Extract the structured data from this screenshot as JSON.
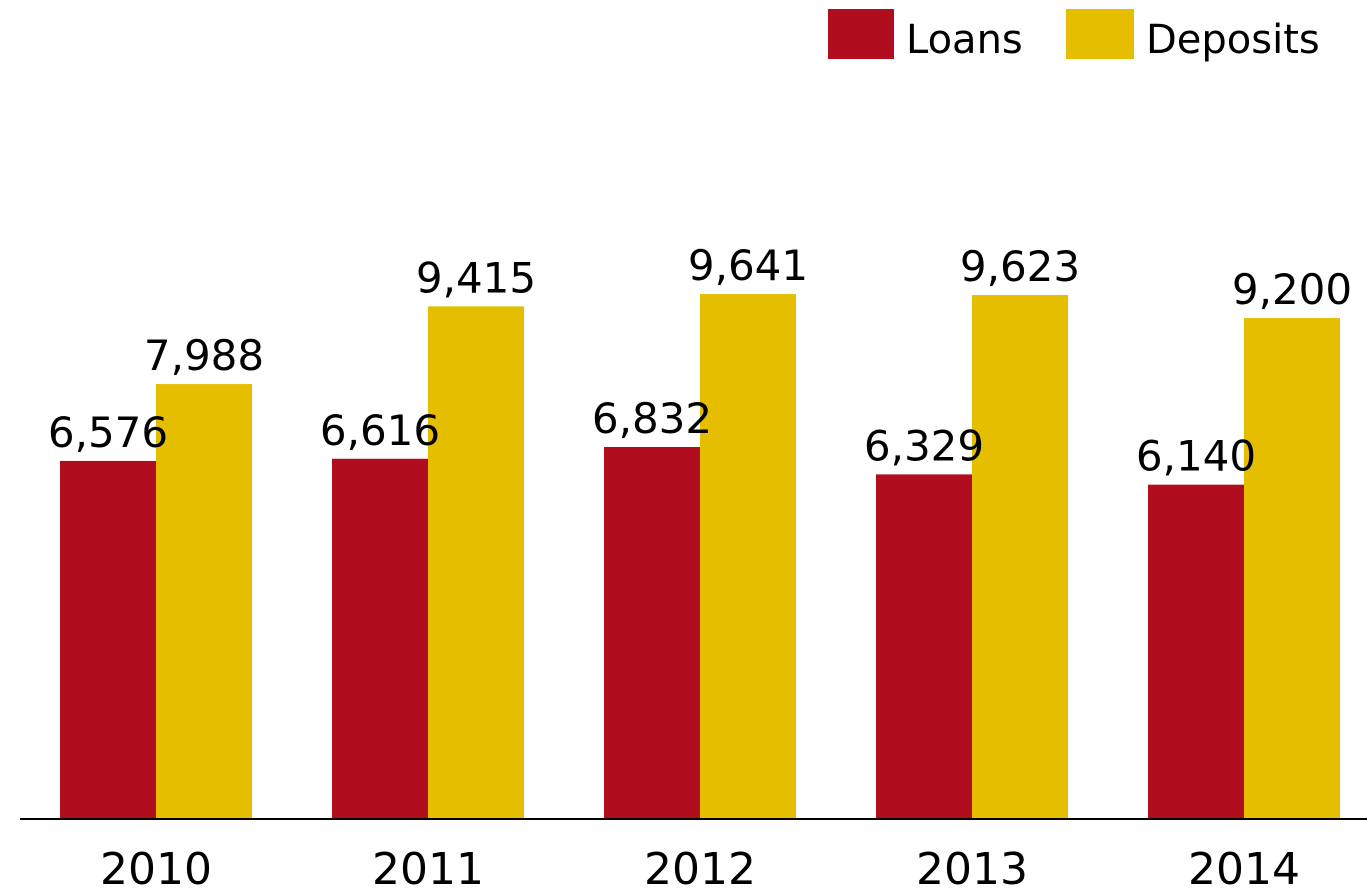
{
  "chart_data": {
    "type": "bar",
    "categories": [
      "2010",
      "2011",
      "2012",
      "2013",
      "2014"
    ],
    "series": [
      {
        "name": "Loans",
        "color": "#B00D1E",
        "values": [
          6576,
          6616,
          6832,
          6329,
          6140
        ],
        "labels": [
          "6,576",
          "6,616",
          "6,832",
          "6,329",
          "6,140"
        ]
      },
      {
        "name": "Deposits",
        "color": "#E6BE00",
        "values": [
          7988,
          9415,
          9641,
          9623,
          9200
        ],
        "labels": [
          "7,988",
          "9,415",
          "9,641",
          "9,623",
          "9,200"
        ]
      }
    ],
    "title": "",
    "xlabel": "",
    "ylabel": "",
    "ylim": [
      0,
      10000
    ],
    "grid": false,
    "legend_position": "top-right",
    "data_labels": true,
    "axis_line_color": "#000000"
  }
}
